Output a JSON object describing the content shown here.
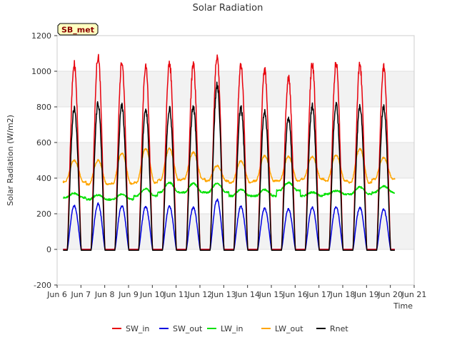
{
  "chart_data": {
    "type": "line",
    "title": "Solar Radiation",
    "xlabel": "Time",
    "ylabel": "Solar Radiation (W/m2)",
    "annotation": "SB_met",
    "xlim": [
      6,
      21
    ],
    "ylim": [
      -200,
      1200
    ],
    "xticks": [
      6,
      7,
      8,
      9,
      10,
      11,
      12,
      13,
      14,
      15,
      16,
      17,
      18,
      19,
      20,
      21
    ],
    "xtick_labels": [
      "Jun 6",
      "Jun 7",
      "Jun 8",
      "Jun 9",
      "Jun 10",
      "Jun 11",
      "Jun 12",
      "Jun 13",
      "Jun 14",
      "Jun 15",
      "Jun 16",
      "Jun 17",
      "Jun 18",
      "Jun 19",
      "Jun 20",
      "Jun 21"
    ],
    "yticks": [
      -200,
      0,
      200,
      400,
      600,
      800,
      1000,
      1200
    ],
    "ytick_labels": [
      "-200",
      "0",
      "200",
      "400",
      "600",
      "800",
      "1000",
      "1200"
    ],
    "grid": "horizontal bands",
    "legend_position": "bottom",
    "daily_noon": [
      6.72,
      7.72,
      8.72,
      9.72,
      10.72,
      11.72,
      12.72,
      13.72,
      14.72,
      15.72,
      16.72,
      17.72,
      18.72,
      19.72
    ],
    "series": [
      {
        "name": "SW_in",
        "color": "#e8000b",
        "daily_peak": [
          1040,
          1085,
          1050,
          1025,
          1050,
          1035,
          1080,
          1030,
          1005,
          965,
          1040,
          1055,
          1035,
          1025
        ]
      },
      {
        "name": "SW_out",
        "color": "#0000e0",
        "daily_peak": [
          245,
          255,
          245,
          240,
          240,
          235,
          280,
          240,
          230,
          225,
          235,
          240,
          235,
          225
        ]
      },
      {
        "name": "LW_in",
        "color": "#00e000",
        "daily_peak": [
          315,
          305,
          310,
          340,
          375,
          370,
          370,
          335,
          335,
          375,
          320,
          330,
          350,
          355
        ],
        "daily_base": [
          290,
          280,
          280,
          300,
          320,
          320,
          320,
          300,
          300,
          330,
          300,
          310,
          310,
          320
        ]
      },
      {
        "name": "LW_out",
        "color": "#ffa500",
        "daily_peak": [
          500,
          500,
          540,
          565,
          565,
          545,
          470,
          495,
          525,
          520,
          520,
          530,
          565,
          515
        ],
        "daily_base": [
          380,
          365,
          370,
          375,
          390,
          395,
          385,
          375,
          385,
          385,
          395,
          385,
          375,
          395
        ]
      },
      {
        "name": "Rnet",
        "color": "#000000",
        "daily_peak": [
          795,
          825,
          805,
          790,
          790,
          800,
          920,
          795,
          775,
          740,
          805,
          815,
          805,
          800
        ],
        "night_value": -5
      }
    ]
  }
}
